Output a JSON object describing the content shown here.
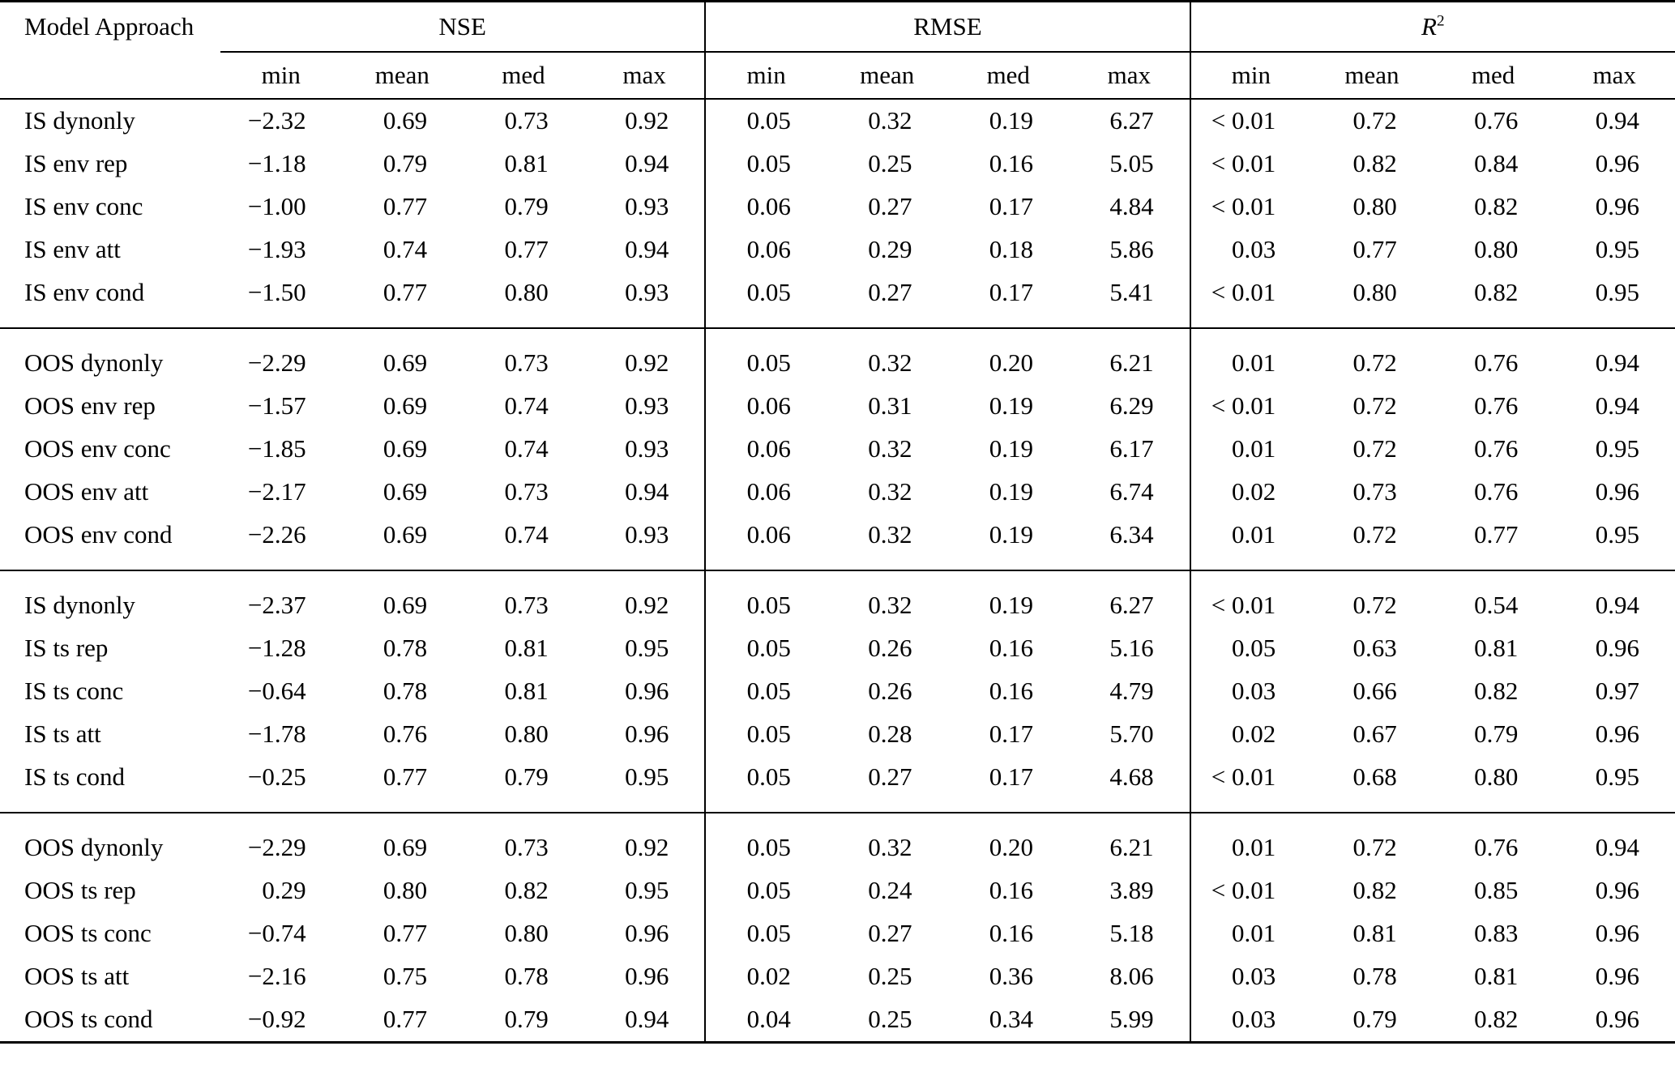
{
  "table": {
    "row_header": "Model Approach",
    "col_groups": [
      {
        "label": "NSE"
      },
      {
        "label": "RMSE"
      },
      {
        "label": "R",
        "sup": "2"
      }
    ],
    "sub_headers": [
      "min",
      "mean",
      "med",
      "max"
    ],
    "groups": [
      {
        "rows": [
          {
            "label": "IS dynonly",
            "values": [
              "−2.32",
              "0.69",
              "0.73",
              "0.92",
              "0.05",
              "0.32",
              "0.19",
              "6.27",
              "< 0.01",
              "0.72",
              "0.76",
              "0.94"
            ]
          },
          {
            "label": "IS env rep",
            "values": [
              "−1.18",
              "0.79",
              "0.81",
              "0.94",
              "0.05",
              "0.25",
              "0.16",
              "5.05",
              "< 0.01",
              "0.82",
              "0.84",
              "0.96"
            ]
          },
          {
            "label": "IS env conc",
            "values": [
              "−1.00",
              "0.77",
              "0.79",
              "0.93",
              "0.06",
              "0.27",
              "0.17",
              "4.84",
              "< 0.01",
              "0.80",
              "0.82",
              "0.96"
            ]
          },
          {
            "label": "IS env att",
            "values": [
              "−1.93",
              "0.74",
              "0.77",
              "0.94",
              "0.06",
              "0.29",
              "0.18",
              "5.86",
              "0.03",
              "0.77",
              "0.80",
              "0.95"
            ]
          },
          {
            "label": "IS env cond",
            "values": [
              "−1.50",
              "0.77",
              "0.80",
              "0.93",
              "0.05",
              "0.27",
              "0.17",
              "5.41",
              "< 0.01",
              "0.80",
              "0.82",
              "0.95"
            ]
          }
        ]
      },
      {
        "rows": [
          {
            "label": "OOS dynonly",
            "values": [
              "−2.29",
              "0.69",
              "0.73",
              "0.92",
              "0.05",
              "0.32",
              "0.20",
              "6.21",
              "0.01",
              "0.72",
              "0.76",
              "0.94"
            ]
          },
          {
            "label": "OOS env rep",
            "values": [
              "−1.57",
              "0.69",
              "0.74",
              "0.93",
              "0.06",
              "0.31",
              "0.19",
              "6.29",
              "< 0.01",
              "0.72",
              "0.76",
              "0.94"
            ]
          },
          {
            "label": "OOS env conc",
            "values": [
              "−1.85",
              "0.69",
              "0.74",
              "0.93",
              "0.06",
              "0.32",
              "0.19",
              "6.17",
              "0.01",
              "0.72",
              "0.76",
              "0.95"
            ]
          },
          {
            "label": "OOS env att",
            "values": [
              "−2.17",
              "0.69",
              "0.73",
              "0.94",
              "0.06",
              "0.32",
              "0.19",
              "6.74",
              "0.02",
              "0.73",
              "0.76",
              "0.96"
            ]
          },
          {
            "label": "OOS env cond",
            "values": [
              "−2.26",
              "0.69",
              "0.74",
              "0.93",
              "0.06",
              "0.32",
              "0.19",
              "6.34",
              "0.01",
              "0.72",
              "0.77",
              "0.95"
            ]
          }
        ]
      },
      {
        "rows": [
          {
            "label": "IS dynonly",
            "values": [
              "−2.37",
              "0.69",
              "0.73",
              "0.92",
              "0.05",
              "0.32",
              "0.19",
              "6.27",
              "< 0.01",
              "0.72",
              "0.54",
              "0.94"
            ]
          },
          {
            "label": "IS ts rep",
            "values": [
              "−1.28",
              "0.78",
              "0.81",
              "0.95",
              "0.05",
              "0.26",
              "0.16",
              "5.16",
              "0.05",
              "0.63",
              "0.81",
              "0.96"
            ]
          },
          {
            "label": "IS ts conc",
            "values": [
              "−0.64",
              "0.78",
              "0.81",
              "0.96",
              "0.05",
              "0.26",
              "0.16",
              "4.79",
              "0.03",
              "0.66",
              "0.82",
              "0.97"
            ]
          },
          {
            "label": "IS ts att",
            "values": [
              "−1.78",
              "0.76",
              "0.80",
              "0.96",
              "0.05",
              "0.28",
              "0.17",
              "5.70",
              "0.02",
              "0.67",
              "0.79",
              "0.96"
            ]
          },
          {
            "label": "IS ts cond",
            "values": [
              "−0.25",
              "0.77",
              "0.79",
              "0.95",
              "0.05",
              "0.27",
              "0.17",
              "4.68",
              "< 0.01",
              "0.68",
              "0.80",
              "0.95"
            ]
          }
        ]
      },
      {
        "rows": [
          {
            "label": "OOS dynonly",
            "values": [
              "−2.29",
              "0.69",
              "0.73",
              "0.92",
              "0.05",
              "0.32",
              "0.20",
              "6.21",
              "0.01",
              "0.72",
              "0.76",
              "0.94"
            ]
          },
          {
            "label": "OOS ts rep",
            "values": [
              "0.29",
              "0.80",
              "0.82",
              "0.95",
              "0.05",
              "0.24",
              "0.16",
              "3.89",
              "< 0.01",
              "0.82",
              "0.85",
              "0.96"
            ]
          },
          {
            "label": "OOS ts conc",
            "values": [
              "−0.74",
              "0.77",
              "0.80",
              "0.96",
              "0.05",
              "0.27",
              "0.16",
              "5.18",
              "0.01",
              "0.81",
              "0.83",
              "0.96"
            ]
          },
          {
            "label": "OOS ts att",
            "values": [
              "−2.16",
              "0.75",
              "0.78",
              "0.96",
              "0.02",
              "0.25",
              "0.36",
              "8.06",
              "0.03",
              "0.78",
              "0.81",
              "0.96"
            ]
          },
          {
            "label": "OOS ts cond",
            "values": [
              "−0.92",
              "0.77",
              "0.79",
              "0.94",
              "0.04",
              "0.25",
              "0.34",
              "5.99",
              "0.03",
              "0.79",
              "0.82",
              "0.96"
            ]
          }
        ]
      }
    ]
  }
}
